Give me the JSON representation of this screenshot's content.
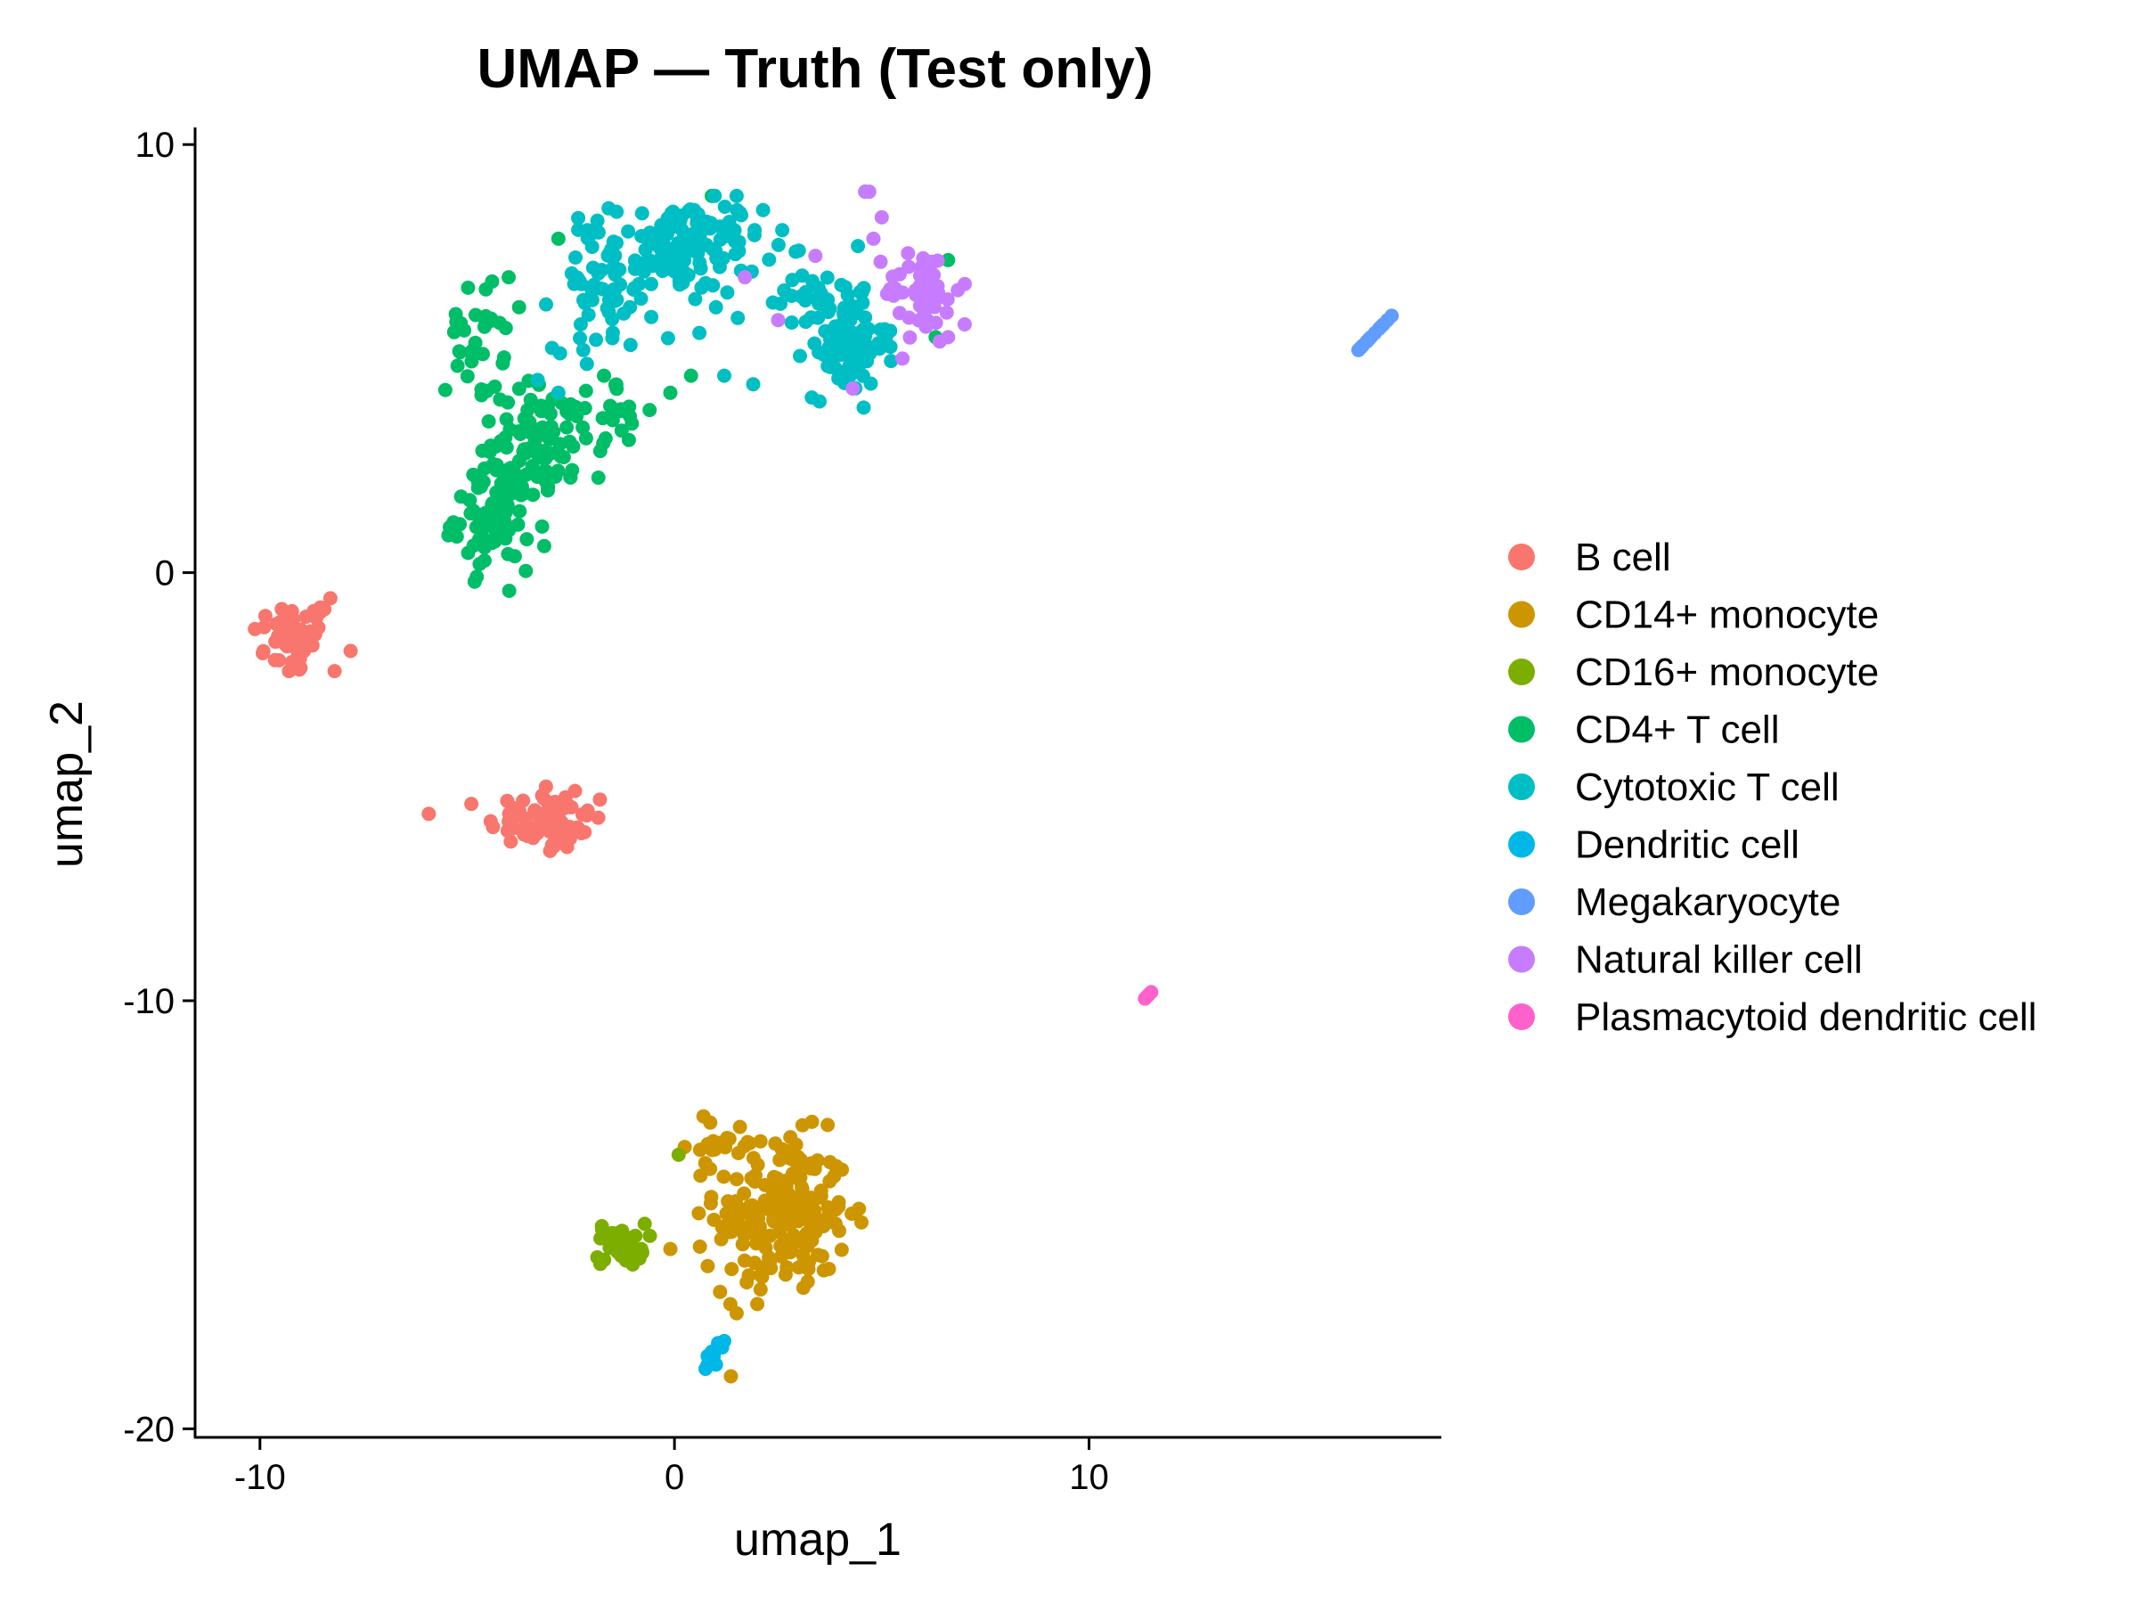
{
  "chart_data": {
    "type": "scatter",
    "title": "UMAP — Truth (Test only)",
    "xlabel": "umap_1",
    "ylabel": "umap_2",
    "xlim": [
      -11.5,
      18.5
    ],
    "ylim": [
      -20.2,
      10.4
    ],
    "x_ticks": [
      -10,
      0,
      10
    ],
    "y_ticks": [
      -20,
      -10,
      0,
      10
    ],
    "x_tick_labels": [
      "-10",
      "0",
      "10"
    ],
    "y_tick_labels": [
      "-20",
      "-10",
      "0",
      "10"
    ],
    "grid": false,
    "legend_position": "right",
    "series": [
      {
        "name": "B cell",
        "color": "#F8766D",
        "clusters": [
          {
            "center": [
              -9.2,
              -1.5
            ],
            "spread": [
              0.5,
              0.45
            ],
            "count": 45
          },
          {
            "center": [
              -3.1,
              -5.8
            ],
            "spread": [
              0.7,
              0.35
            ],
            "count": 70
          }
        ],
        "points": [
          [
            -8.3,
            -0.6
          ],
          [
            -8.2,
            -2.3
          ],
          [
            -9.6,
            -1.2
          ],
          [
            -8.7,
            -0.9
          ],
          [
            -9.3,
            -2.3
          ],
          [
            -3.1,
            -5.0
          ],
          [
            -2.4,
            -5.1
          ],
          [
            -1.8,
            -5.3
          ],
          [
            -3.9,
            -5.5
          ],
          [
            -3.0,
            -6.5
          ]
        ]
      },
      {
        "name": "CD14+ monocyte",
        "color": "#CD9600",
        "clusters": [
          {
            "center": [
              2.6,
              -15.0
            ],
            "spread": [
              0.8,
              0.9
            ],
            "count": 200
          },
          {
            "center": [
              1.3,
              -13.3
            ],
            "spread": [
              0.5,
              0.25
            ],
            "count": 20
          }
        ],
        "points": [
          [
            0.7,
            -12.7
          ],
          [
            -0.1,
            -15.8
          ],
          [
            0.8,
            -16.2
          ],
          [
            1.1,
            -16.8
          ],
          [
            1.5,
            -17.3
          ],
          [
            3.6,
            -16.3
          ],
          [
            3.3,
            -13.8
          ]
        ]
      },
      {
        "name": "CD16+ monocyte",
        "color": "#7CAE00",
        "clusters": [
          {
            "center": [
              -1.3,
              -15.7
            ],
            "spread": [
              0.3,
              0.25
            ],
            "count": 35
          }
        ],
        "points": [
          [
            0.1,
            -13.6
          ],
          [
            -0.8,
            -15.8
          ]
        ]
      },
      {
        "name": "CD4+ T cell",
        "color": "#00BE67",
        "clusters": [
          {
            "center": [
              -4.4,
              1.3
            ],
            "spread": [
              0.45,
              0.6
            ],
            "count": 80
          },
          {
            "center": [
              -3.2,
              3.0
            ],
            "spread": [
              0.8,
              0.7
            ],
            "count": 90
          },
          {
            "center": [
              -4.8,
              5.4
            ],
            "spread": [
              0.35,
              0.6
            ],
            "count": 30
          },
          {
            "center": [
              -1.8,
              3.8
            ],
            "spread": [
              0.5,
              0.4
            ],
            "count": 25
          }
        ],
        "points": [
          [
            -4.7,
            0.2
          ],
          [
            -4.4,
            6.8
          ],
          [
            -4.0,
            6.9
          ],
          [
            -2.8,
            7.8
          ],
          [
            -1.1,
            3.1
          ],
          [
            -0.6,
            3.8
          ],
          [
            -0.1,
            4.2
          ],
          [
            0.4,
            4.6
          ],
          [
            0.9,
            8.8
          ],
          [
            4.6,
            8.9
          ],
          [
            6.3,
            5.5
          ],
          [
            6.6,
            7.3
          ]
        ]
      },
      {
        "name": "Cytotoxic T cell",
        "color": "#00BFC4",
        "clusters": [
          {
            "center": [
              0.3,
              7.6
            ],
            "spread": [
              0.9,
              0.55
            ],
            "count": 130
          },
          {
            "center": [
              -1.7,
              6.6
            ],
            "spread": [
              0.6,
              0.7
            ],
            "count": 55
          },
          {
            "center": [
              4.1,
              5.3
            ],
            "spread": [
              0.5,
              0.55
            ],
            "count": 90
          },
          {
            "center": [
              3.6,
              6.6
            ],
            "spread": [
              0.5,
              0.3
            ],
            "count": 25
          }
        ],
        "points": [
          [
            1.5,
            8.8
          ],
          [
            2.6,
            8.0
          ],
          [
            -2.1,
            8.0
          ],
          [
            -3.3,
            4.5
          ],
          [
            -2.8,
            4.2
          ],
          [
            1.9,
            4.4
          ],
          [
            1.2,
            4.6
          ],
          [
            3.5,
            4.0
          ],
          [
            5.1,
            5.5
          ],
          [
            6.2,
            6.9
          ],
          [
            -2.2,
            5.2
          ],
          [
            0.6,
            5.6
          ],
          [
            1.0,
            6.2
          ]
        ]
      },
      {
        "name": "Dendritic cell",
        "color": "#00B8E7",
        "clusters": [],
        "points": [
          [
            0.8,
            -18.5
          ],
          [
            0.75,
            -18.6
          ],
          [
            0.85,
            -18.4
          ],
          [
            0.95,
            -18.3
          ],
          [
            0.9,
            -18.2
          ],
          [
            1.05,
            -18.0
          ],
          [
            1.2,
            -17.95
          ],
          [
            1.15,
            -18.1
          ],
          [
            1.0,
            -18.5
          ],
          [
            0.8,
            -18.3
          ]
        ]
      },
      {
        "name": "Megakaryocyte",
        "color": "#619CFF",
        "clusters": [],
        "points": [
          [
            16.5,
            5.2
          ],
          [
            16.6,
            5.3
          ],
          [
            16.7,
            5.4
          ],
          [
            16.8,
            5.5
          ],
          [
            16.9,
            5.6
          ],
          [
            17.0,
            5.7
          ],
          [
            17.1,
            5.8
          ],
          [
            17.2,
            5.9
          ],
          [
            17.3,
            6.0
          ],
          [
            16.55,
            5.25
          ],
          [
            16.75,
            5.45
          ],
          [
            17.05,
            5.75
          ]
        ]
      },
      {
        "name": "Natural killer cell",
        "color": "#C77CFF",
        "clusters": [
          {
            "center": [
              6.0,
              6.6
            ],
            "spread": [
              0.45,
              0.5
            ],
            "count": 45
          }
        ],
        "points": [
          [
            4.6,
            8.9
          ],
          [
            4.7,
            8.9
          ],
          [
            5.0,
            8.3
          ],
          [
            4.8,
            7.8
          ],
          [
            4.3,
            4.3
          ],
          [
            6.4,
            5.4
          ],
          [
            6.6,
            5.5
          ],
          [
            7.0,
            5.8
          ],
          [
            1.7,
            6.9
          ],
          [
            3.4,
            7.4
          ],
          [
            2.5,
            5.9
          ],
          [
            5.5,
            5.0
          ]
        ]
      },
      {
        "name": "Plasmacytoid dendritic cell",
        "color": "#FF61CC",
        "clusters": [],
        "points": [
          [
            11.35,
            -9.95
          ],
          [
            11.45,
            -9.85
          ],
          [
            11.5,
            -9.8
          ],
          [
            11.4,
            -9.9
          ]
        ]
      }
    ]
  }
}
